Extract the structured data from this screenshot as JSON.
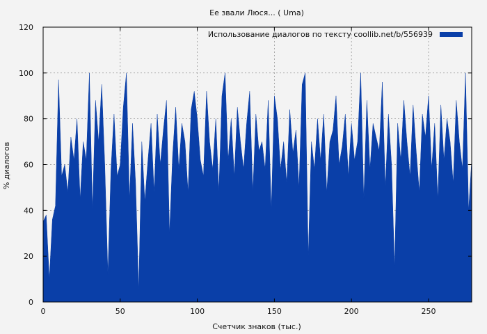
{
  "chart_data": {
    "type": "area",
    "title": "Ее звали Люся... ( Uma)",
    "xlabel": "Счетчик знаков (тыс.)",
    "ylabel": "% диалогов",
    "xlim": [
      0,
      278
    ],
    "ylim": [
      0,
      120
    ],
    "xticks": [
      0,
      50,
      100,
      150,
      200,
      250
    ],
    "yticks": [
      0,
      20,
      40,
      60,
      80,
      100,
      120
    ],
    "grid": true,
    "legend_position": "top-right",
    "series": [
      {
        "name": "Использование диалогов по тексту  coollib.net/b/556939",
        "color": "#0a3fa8",
        "x": [
          0,
          2,
          4,
          6,
          8,
          10,
          12,
          14,
          16,
          18,
          20,
          22,
          24,
          26,
          28,
          30,
          32,
          34,
          36,
          38,
          40,
          42,
          44,
          46,
          48,
          50,
          52,
          54,
          56,
          58,
          60,
          62,
          64,
          66,
          68,
          70,
          72,
          74,
          76,
          78,
          80,
          82,
          84,
          86,
          88,
          90,
          92,
          94,
          96,
          98,
          100,
          102,
          104,
          106,
          108,
          110,
          112,
          114,
          116,
          118,
          120,
          122,
          124,
          126,
          128,
          130,
          132,
          134,
          136,
          138,
          140,
          142,
          144,
          146,
          148,
          150,
          152,
          154,
          156,
          158,
          160,
          162,
          164,
          166,
          168,
          170,
          172,
          174,
          176,
          178,
          180,
          182,
          184,
          186,
          188,
          190,
          192,
          194,
          196,
          198,
          200,
          202,
          204,
          206,
          208,
          210,
          212,
          214,
          216,
          218,
          220,
          222,
          224,
          226,
          228,
          230,
          232,
          234,
          236,
          238,
          240,
          242,
          244,
          246,
          248,
          250,
          252,
          254,
          256,
          258,
          260,
          262,
          264,
          266,
          268,
          270,
          272,
          274,
          276,
          278
        ],
        "values": [
          35,
          38,
          10,
          36,
          42,
          97,
          55,
          60,
          48,
          72,
          62,
          80,
          45,
          70,
          62,
          100,
          40,
          88,
          70,
          95,
          60,
          12,
          58,
          82,
          55,
          60,
          85,
          100,
          45,
          78,
          52,
          5,
          70,
          44,
          62,
          78,
          48,
          82,
          60,
          75,
          88,
          30,
          64,
          85,
          58,
          78,
          70,
          48,
          84,
          92,
          80,
          62,
          55,
          92,
          70,
          58,
          80,
          48,
          90,
          100,
          62,
          80,
          55,
          85,
          70,
          58,
          78,
          92,
          48,
          82,
          66,
          70,
          58,
          88,
          40,
          90,
          80,
          58,
          70,
          52,
          84,
          65,
          75,
          50,
          95,
          100,
          20,
          70,
          58,
          80,
          62,
          82,
          48,
          70,
          75,
          90,
          60,
          68,
          82,
          55,
          78,
          62,
          70,
          100,
          45,
          88,
          58,
          78,
          72,
          66,
          96,
          50,
          82,
          60,
          15,
          78,
          62,
          88,
          70,
          55,
          86,
          66,
          48,
          82,
          72,
          90,
          58,
          78,
          45,
          86,
          62,
          80,
          70,
          52,
          88,
          70,
          58,
          100,
          40,
          62
        ]
      }
    ]
  }
}
